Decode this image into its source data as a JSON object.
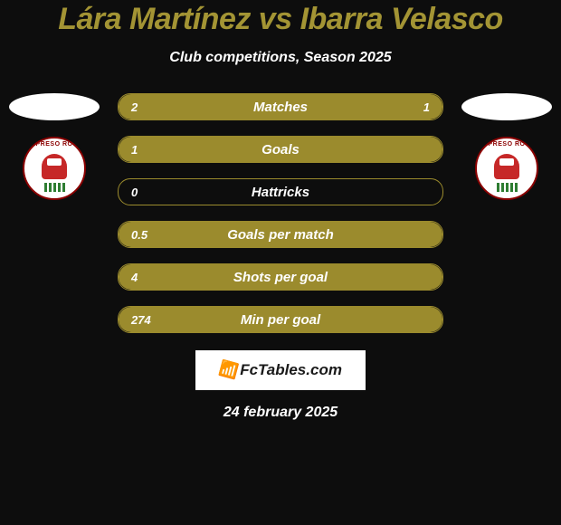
{
  "header": {
    "title": "Lára Martínez vs Ibarra Velasco",
    "subtitle": "Club competitions, Season 2025"
  },
  "player_left": {
    "team_name": "EXPRESO ROJO"
  },
  "player_right": {
    "team_name": "EXPRESO ROJO"
  },
  "stats": [
    {
      "label": "Matches",
      "left_val": "2",
      "right_val": "1",
      "left_width_pct": 66,
      "right_width_pct": 34,
      "show_right": true
    },
    {
      "label": "Goals",
      "left_val": "1",
      "right_val": "",
      "left_width_pct": 100,
      "right_width_pct": 0,
      "show_right": false
    },
    {
      "label": "Hattricks",
      "left_val": "0",
      "right_val": "",
      "left_width_pct": 0,
      "right_width_pct": 0,
      "show_right": false
    },
    {
      "label": "Goals per match",
      "left_val": "0.5",
      "right_val": "",
      "left_width_pct": 100,
      "right_width_pct": 0,
      "show_right": false
    },
    {
      "label": "Shots per goal",
      "left_val": "4",
      "right_val": "",
      "left_width_pct": 100,
      "right_width_pct": 0,
      "show_right": false
    },
    {
      "label": "Min per goal",
      "left_val": "274",
      "right_val": "",
      "left_width_pct": 100,
      "right_width_pct": 0,
      "show_right": false
    }
  ],
  "footer": {
    "brand": "FcTables.com",
    "date": "24 february 2025"
  },
  "colors": {
    "accent": "#9b8b2d",
    "title": "#a39434",
    "background": "#0d0d0d",
    "text": "#ffffff"
  }
}
